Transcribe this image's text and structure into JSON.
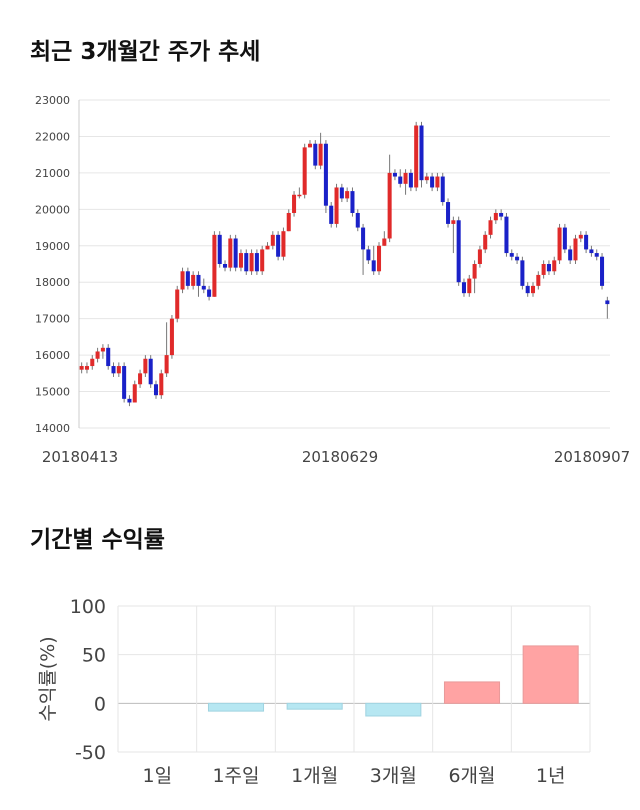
{
  "titles": {
    "price_chart": "최근 3개월간 주가 추세",
    "return_chart": "기간별 수익률"
  },
  "colors": {
    "up": "#e02a2a",
    "down": "#1a21c8",
    "wick": "#777777",
    "grid": "#e6e6e6",
    "neg_bar": "#b6e7f2",
    "neg_bar_border": "#9fd3e0",
    "pos_bar": "#ffa3a3",
    "pos_bar_border": "#e89a9a"
  },
  "chart_data": [
    {
      "type": "candlestick",
      "title": "최근 3개월간 주가 추세",
      "ylim": [
        14000,
        23000
      ],
      "yticks": [
        "14000",
        "15000",
        "16000",
        "17000",
        "18000",
        "19000",
        "20000",
        "21000",
        "22000",
        "23000"
      ],
      "xtick_labels": [
        "20180413",
        "20180629",
        "20180907"
      ],
      "grid": true,
      "candles": [
        [
          15600,
          15700,
          15500,
          15800
        ],
        [
          15600,
          15700,
          15500,
          15800
        ],
        [
          15700,
          15900,
          15600,
          16000
        ],
        [
          15900,
          16100,
          15800,
          16200
        ],
        [
          16100,
          16200,
          15900,
          16300
        ],
        [
          16200,
          15700,
          15600,
          16300
        ],
        [
          15700,
          15500,
          15400,
          15800
        ],
        [
          15500,
          15700,
          15400,
          15800
        ],
        [
          15700,
          14800,
          14700,
          15800
        ],
        [
          14800,
          14700,
          14600,
          14900
        ],
        [
          14700,
          15200,
          14700,
          15300
        ],
        [
          15200,
          15500,
          15100,
          15600
        ],
        [
          15500,
          15900,
          15400,
          16000
        ],
        [
          15900,
          15200,
          15100,
          16000
        ],
        [
          15200,
          14900,
          14800,
          15300
        ],
        [
          14900,
          15500,
          14800,
          15600
        ],
        [
          15500,
          16000,
          15400,
          16900
        ],
        [
          16000,
          17000,
          15900,
          17100
        ],
        [
          17000,
          17800,
          16900,
          17900
        ],
        [
          17800,
          18300,
          17700,
          18400
        ],
        [
          18300,
          17900,
          17800,
          18400
        ],
        [
          17900,
          18200,
          17800,
          18300
        ],
        [
          18200,
          17900,
          17600,
          18300
        ],
        [
          17900,
          17800,
          17700,
          18100
        ],
        [
          17800,
          17600,
          17500,
          17900
        ],
        [
          17600,
          19300,
          17600,
          19400
        ],
        [
          19300,
          18500,
          18400,
          19400
        ],
        [
          18500,
          18400,
          18300,
          18600
        ],
        [
          18400,
          19200,
          18300,
          19300
        ],
        [
          19200,
          18400,
          18300,
          19300
        ],
        [
          18400,
          18800,
          18300,
          18900
        ],
        [
          18800,
          18300,
          18200,
          18900
        ],
        [
          18300,
          18800,
          18200,
          18900
        ],
        [
          18800,
          18300,
          18200,
          18900
        ],
        [
          18300,
          18900,
          18200,
          19000
        ],
        [
          18900,
          19000,
          18900,
          19100
        ],
        [
          19000,
          19300,
          18900,
          19400
        ],
        [
          19300,
          18700,
          18600,
          19400
        ],
        [
          18700,
          19400,
          18600,
          19500
        ],
        [
          19400,
          19900,
          19400,
          20000
        ],
        [
          19900,
          20400,
          19800,
          20500
        ],
        [
          20400,
          20400,
          20300,
          20600
        ],
        [
          20400,
          21700,
          20300,
          21800
        ],
        [
          21700,
          21800,
          21700,
          21900
        ],
        [
          21800,
          21200,
          21100,
          21900
        ],
        [
          21200,
          21800,
          21100,
          22100
        ],
        [
          21800,
          20100,
          19900,
          21900
        ],
        [
          20100,
          19600,
          19500,
          20200
        ],
        [
          19600,
          20600,
          19500,
          20700
        ],
        [
          20600,
          20300,
          20200,
          20700
        ],
        [
          20300,
          20500,
          20200,
          20600
        ],
        [
          20500,
          19900,
          19800,
          20600
        ],
        [
          19900,
          19500,
          19400,
          20000
        ],
        [
          19500,
          18900,
          18200,
          19600
        ],
        [
          18900,
          18600,
          18500,
          19000
        ],
        [
          18600,
          18300,
          18200,
          19000
        ],
        [
          18300,
          19000,
          18200,
          19100
        ],
        [
          19000,
          19200,
          19000,
          19400
        ],
        [
          19200,
          21000,
          19100,
          21500
        ],
        [
          21000,
          20900,
          20800,
          21100
        ],
        [
          20900,
          20700,
          20600,
          21100
        ],
        [
          20700,
          21000,
          20400,
          21100
        ],
        [
          21000,
          20600,
          20500,
          21100
        ],
        [
          20600,
          22300,
          20500,
          22400
        ],
        [
          22300,
          20800,
          20600,
          22400
        ],
        [
          20800,
          20900,
          20700,
          21000
        ],
        [
          20900,
          20600,
          20500,
          21000
        ],
        [
          20600,
          20900,
          20500,
          21000
        ],
        [
          20900,
          20200,
          20100,
          21000
        ],
        [
          20200,
          19600,
          19500,
          20300
        ],
        [
          19600,
          19700,
          18800,
          19800
        ],
        [
          19700,
          18000,
          17900,
          19800
        ],
        [
          18000,
          17700,
          17600,
          18100
        ],
        [
          17700,
          18100,
          17600,
          18200
        ],
        [
          18100,
          18500,
          17700,
          18600
        ],
        [
          18500,
          18900,
          18400,
          19000
        ],
        [
          18900,
          19300,
          18800,
          19400
        ],
        [
          19300,
          19700,
          19200,
          19800
        ],
        [
          19700,
          19900,
          19600,
          20000
        ],
        [
          19900,
          19800,
          19700,
          20000
        ],
        [
          19800,
          18800,
          18700,
          19900
        ],
        [
          18800,
          18700,
          18600,
          18900
        ],
        [
          18700,
          18600,
          18500,
          18800
        ],
        [
          18600,
          17900,
          17800,
          18700
        ],
        [
          17900,
          17700,
          17600,
          18000
        ],
        [
          17700,
          17900,
          17600,
          18000
        ],
        [
          17900,
          18200,
          17800,
          18300
        ],
        [
          18200,
          18500,
          18100,
          18600
        ],
        [
          18500,
          18300,
          18200,
          18600
        ],
        [
          18300,
          18600,
          18200,
          18700
        ],
        [
          18600,
          19500,
          18500,
          19600
        ],
        [
          19500,
          18900,
          18800,
          19600
        ],
        [
          18900,
          18600,
          18500,
          19000
        ],
        [
          18600,
          19200,
          18500,
          19300
        ],
        [
          19200,
          19300,
          19100,
          19400
        ],
        [
          19300,
          18900,
          18800,
          19400
        ],
        [
          18900,
          18800,
          18700,
          19000
        ],
        [
          18800,
          18700,
          18600,
          18900
        ],
        [
          18700,
          17900,
          17800,
          18800
        ],
        [
          17500,
          17400,
          17000,
          17600
        ]
      ]
    },
    {
      "type": "bar",
      "title": "기간별 수익률",
      "categories": [
        "1일",
        "1주일",
        "1개월",
        "3개월",
        "6개월",
        "1년"
      ],
      "values": [
        0,
        -8,
        -6,
        -13,
        22,
        59
      ],
      "ylabel": "수익률(%)",
      "ylim": [
        -50,
        100
      ],
      "yticks": [
        "100",
        "50",
        "0",
        "-50"
      ],
      "grid": true
    }
  ]
}
